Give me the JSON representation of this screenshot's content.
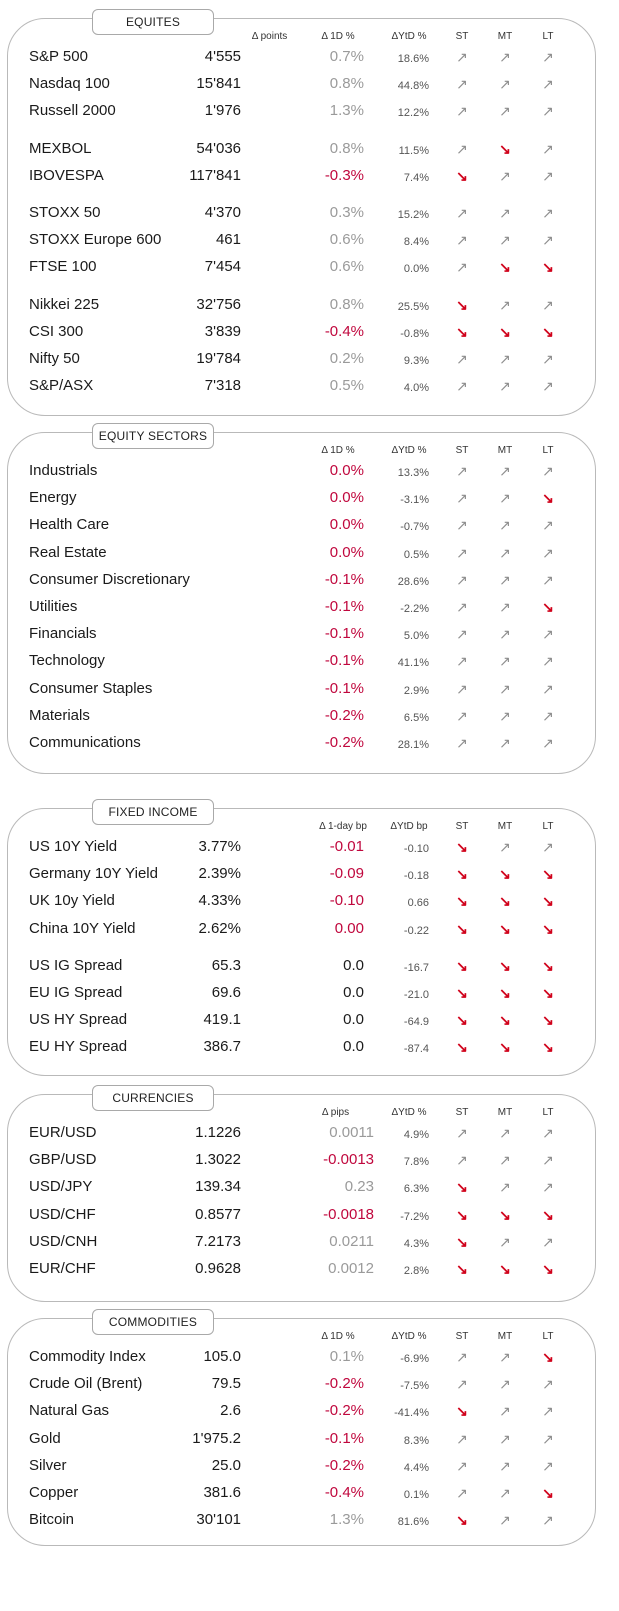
{
  "colors": {
    "neutral": "#9a9a9a",
    "negative": "#c0073d",
    "up_arrow": "#8e8e8e",
    "down_arrow": "#d0021b"
  },
  "icons": {
    "up": "↗",
    "down": "↘"
  },
  "sections": [
    {
      "key": "equities",
      "title": "EQUITES",
      "headers": {
        "change": "Δ points",
        "d1": "Δ 1D %",
        "ytd": "ΔYtD %",
        "st": "ST",
        "mt": "MT",
        "lt": "LT"
      },
      "rows": [
        {
          "name": "S&P 500",
          "level": "4'555",
          "d1": "0.7%",
          "d1_color": "gray",
          "ytd": "18.6%",
          "st": "up",
          "mt": "up",
          "lt": "up"
        },
        {
          "name": "Nasdaq 100",
          "level": "15'841",
          "d1": "0.8%",
          "d1_color": "gray",
          "ytd": "44.8%",
          "st": "up",
          "mt": "up",
          "lt": "up"
        },
        {
          "name": "Russell 2000",
          "level": "1'976",
          "d1": "1.3%",
          "d1_color": "gray",
          "ytd": "12.2%",
          "st": "up",
          "mt": "up",
          "lt": "up"
        },
        {
          "name": "MEXBOL",
          "level": "54'036",
          "d1": "0.8%",
          "d1_color": "gray",
          "ytd": "11.5%",
          "st": "up",
          "mt": "down",
          "lt": "up",
          "gap": true
        },
        {
          "name": "IBOVESPA",
          "level": "117'841",
          "d1": "-0.3%",
          "d1_color": "red",
          "ytd": "7.4%",
          "st": "down",
          "mt": "up",
          "lt": "up"
        },
        {
          "name": "STOXX 50",
          "level": "4'370",
          "d1": "0.3%",
          "d1_color": "gray",
          "ytd": "15.2%",
          "st": "up",
          "mt": "up",
          "lt": "up",
          "gap": true
        },
        {
          "name": "STOXX Europe 600",
          "level": "461",
          "d1": "0.6%",
          "d1_color": "gray",
          "ytd": "8.4%",
          "st": "up",
          "mt": "up",
          "lt": "up"
        },
        {
          "name": "FTSE 100",
          "level": "7'454",
          "d1": "0.6%",
          "d1_color": "gray",
          "ytd": "0.0%",
          "st": "up",
          "mt": "down",
          "lt": "down"
        },
        {
          "name": "Nikkei 225",
          "level": "32'756",
          "d1": "0.8%",
          "d1_color": "gray",
          "ytd": "25.5%",
          "st": "down",
          "mt": "up",
          "lt": "up",
          "gap": true
        },
        {
          "name": "CSI 300",
          "level": "3'839",
          "d1": "-0.4%",
          "d1_color": "red",
          "ytd": "-0.8%",
          "st": "down",
          "mt": "down",
          "lt": "down"
        },
        {
          "name": "Nifty  50",
          "level": "19'784",
          "d1": "0.2%",
          "d1_color": "gray",
          "ytd": "9.3%",
          "st": "up",
          "mt": "up",
          "lt": "up"
        },
        {
          "name": "S&P/ASX",
          "level": "7'318",
          "d1": "0.5%",
          "d1_color": "gray",
          "ytd": "4.0%",
          "st": "up",
          "mt": "up",
          "lt": "up"
        }
      ]
    },
    {
      "key": "sectors",
      "title": "EQUITY  SECTORS",
      "headers": {
        "d1": "Δ 1D %",
        "ytd": "ΔYtD %",
        "st": "ST",
        "mt": "MT",
        "lt": "LT"
      },
      "rows": [
        {
          "name": "Industrials",
          "d1": "0.0%",
          "d1_color": "red",
          "ytd": "13.3%",
          "st": "up",
          "mt": "up",
          "lt": "up"
        },
        {
          "name": "Energy",
          "d1": "0.0%",
          "d1_color": "red",
          "ytd": "-3.1%",
          "st": "up",
          "mt": "up",
          "lt": "down"
        },
        {
          "name": "Health Care",
          "d1": "0.0%",
          "d1_color": "red",
          "ytd": "-0.7%",
          "st": "up",
          "mt": "up",
          "lt": "up"
        },
        {
          "name": "Real Estate",
          "d1": "0.0%",
          "d1_color": "red",
          "ytd": "0.5%",
          "st": "up",
          "mt": "up",
          "lt": "up"
        },
        {
          "name": "Consumer Discretionary",
          "d1": "-0.1%",
          "d1_color": "red",
          "ytd": "28.6%",
          "st": "up",
          "mt": "up",
          "lt": "up"
        },
        {
          "name": "Utilities",
          "d1": "-0.1%",
          "d1_color": "red",
          "ytd": "-2.2%",
          "st": "up",
          "mt": "up",
          "lt": "down"
        },
        {
          "name": "Financials",
          "d1": "-0.1%",
          "d1_color": "red",
          "ytd": "5.0%",
          "st": "up",
          "mt": "up",
          "lt": "up"
        },
        {
          "name": "Technology",
          "d1": "-0.1%",
          "d1_color": "red",
          "ytd": "41.1%",
          "st": "up",
          "mt": "up",
          "lt": "up"
        },
        {
          "name": "Consumer Staples",
          "d1": "-0.1%",
          "d1_color": "red",
          "ytd": "2.9%",
          "st": "up",
          "mt": "up",
          "lt": "up"
        },
        {
          "name": "Materials",
          "d1": "-0.2%",
          "d1_color": "red",
          "ytd": "6.5%",
          "st": "up",
          "mt": "up",
          "lt": "up"
        },
        {
          "name": "Communications",
          "d1": "-0.2%",
          "d1_color": "red",
          "ytd": "28.1%",
          "st": "up",
          "mt": "up",
          "lt": "up"
        }
      ]
    },
    {
      "key": "fixed_income",
      "title": "FIXED  INCOME",
      "headers": {
        "d1": "Δ 1-day bp",
        "ytd": "ΔYtD bp",
        "st": "ST",
        "mt": "MT",
        "lt": "LT"
      },
      "rows": [
        {
          "name": "US 10Y Yield",
          "level": "3.77%",
          "d1": "-0.01",
          "d1_color": "red",
          "ytd": "-0.10",
          "st": "down",
          "mt": "up",
          "lt": "up"
        },
        {
          "name": "Germany 10Y Yield",
          "level": "2.39%",
          "d1": "-0.09",
          "d1_color": "red",
          "ytd": "-0.18",
          "st": "down",
          "mt": "down",
          "lt": "down"
        },
        {
          "name": "UK 10y Yield",
          "level": "4.33%",
          "d1": "-0.10",
          "d1_color": "red",
          "ytd": "0.66",
          "st": "down",
          "mt": "down",
          "lt": "down"
        },
        {
          "name": "China 10Y Yield",
          "level": "2.62%",
          "d1": "0.00",
          "d1_color": "red",
          "ytd": "-0.22",
          "st": "down",
          "mt": "down",
          "lt": "down"
        },
        {
          "name": "US IG Spread",
          "level": "65.3",
          "d1": "0.0",
          "d1_color": "blk",
          "ytd": "-16.7",
          "st": "down",
          "mt": "down",
          "lt": "down",
          "gap": true
        },
        {
          "name": "EU IG Spread",
          "level": "69.6",
          "d1": "0.0",
          "d1_color": "blk",
          "ytd": "-21.0",
          "st": "down",
          "mt": "down",
          "lt": "down"
        },
        {
          "name": "US HY Spread",
          "level": "419.1",
          "d1": "0.0",
          "d1_color": "blk",
          "ytd": "-64.9",
          "st": "down",
          "mt": "down",
          "lt": "down"
        },
        {
          "name": "EU HY Spread",
          "level": "386.7",
          "d1": "0.0",
          "d1_color": "blk",
          "ytd": "-87.4",
          "st": "down",
          "mt": "down",
          "lt": "down"
        }
      ]
    },
    {
      "key": "currencies",
      "title": "CURRENCIES",
      "headers": {
        "d1": "Δ pips",
        "ytd": "ΔYtD %",
        "st": "ST",
        "mt": "MT",
        "lt": "LT"
      },
      "rows": [
        {
          "name": "EUR/USD",
          "level": "1.1226",
          "d1": "0.0011",
          "d1_color": "gray",
          "ytd": "4.9%",
          "st": "up",
          "mt": "up",
          "lt": "up"
        },
        {
          "name": "GBP/USD",
          "level": "1.3022",
          "d1": "-0.0013",
          "d1_color": "red",
          "ytd": "7.8%",
          "st": "up",
          "mt": "up",
          "lt": "up"
        },
        {
          "name": "USD/JPY",
          "level": "139.34",
          "d1": "0.23",
          "d1_color": "gray",
          "ytd": "6.3%",
          "st": "down",
          "mt": "up",
          "lt": "up"
        },
        {
          "name": "USD/CHF",
          "level": "0.8577",
          "d1": "-0.0018",
          "d1_color": "red",
          "ytd": "-7.2%",
          "st": "down",
          "mt": "down",
          "lt": "down"
        },
        {
          "name": "USD/CNH",
          "level": "7.2173",
          "d1": "0.0211",
          "d1_color": "gray",
          "ytd": "4.3%",
          "st": "down",
          "mt": "up",
          "lt": "up"
        },
        {
          "name": "EUR/CHF",
          "level": "0.9628",
          "d1": "0.0012",
          "d1_color": "gray",
          "ytd": "2.8%",
          "st": "down",
          "mt": "down",
          "lt": "down"
        }
      ]
    },
    {
      "key": "commodities",
      "title": "COMMODITIES",
      "headers": {
        "d1": "Δ 1D %",
        "ytd": "ΔYtD %",
        "st": "ST",
        "mt": "MT",
        "lt": "LT"
      },
      "rows": [
        {
          "name": "Commodity Index",
          "level": "105.0",
          "d1": "0.1%",
          "d1_color": "gray",
          "ytd": "-6.9%",
          "st": "up",
          "mt": "up",
          "lt": "down"
        },
        {
          "name": "Crude Oil (Brent)",
          "level": "79.5",
          "d1": "-0.2%",
          "d1_color": "red",
          "ytd": "-7.5%",
          "st": "up",
          "mt": "up",
          "lt": "up"
        },
        {
          "name": "Natural Gas",
          "level": "2.6",
          "d1": "-0.2%",
          "d1_color": "red",
          "ytd": "-41.4%",
          "st": "down",
          "mt": "up",
          "lt": "up"
        },
        {
          "name": "Gold",
          "level": "1'975.2",
          "d1": "-0.1%",
          "d1_color": "red",
          "ytd": "8.3%",
          "st": "up",
          "mt": "up",
          "lt": "up"
        },
        {
          "name": "Silver",
          "level": "25.0",
          "d1": "-0.2%",
          "d1_color": "red",
          "ytd": "4.4%",
          "st": "up",
          "mt": "up",
          "lt": "up"
        },
        {
          "name": "Copper",
          "level": "381.6",
          "d1": "-0.4%",
          "d1_color": "red",
          "ytd": "0.1%",
          "st": "up",
          "mt": "up",
          "lt": "down"
        },
        {
          "name": "Bitcoin",
          "level": "30'101",
          "d1": "1.3%",
          "d1_color": "gray",
          "ytd": "81.6%",
          "st": "down",
          "mt": "up",
          "lt": "up"
        }
      ]
    }
  ]
}
